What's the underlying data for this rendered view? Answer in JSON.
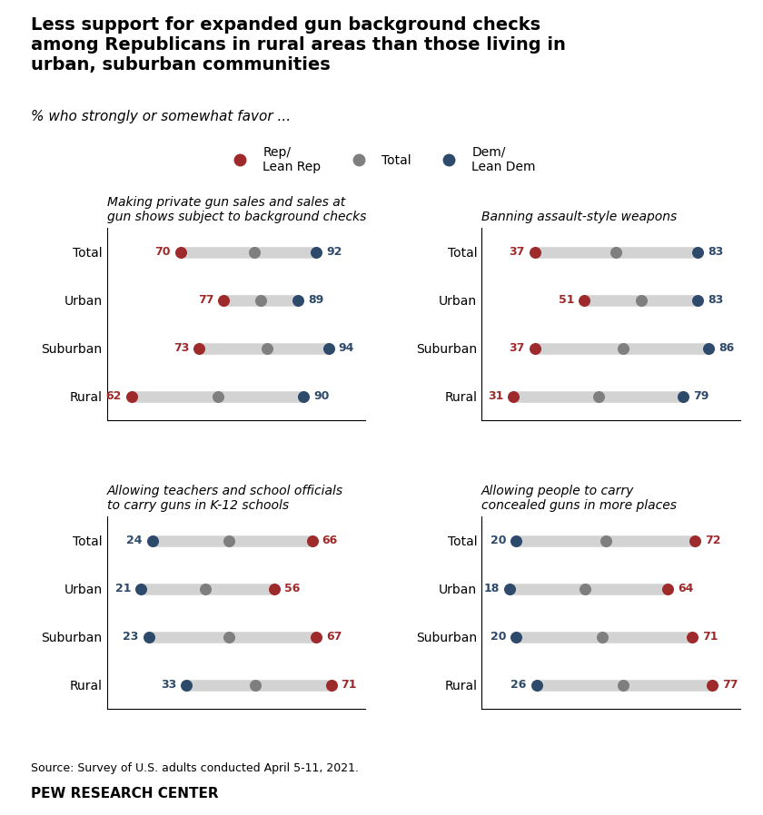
{
  "title": "Less support for expanded gun background checks\namong Republicans in rural areas than those living in\nurban, suburban communities",
  "subtitle": "% who strongly or somewhat favor ...",
  "annotations": [
    "Source: Survey of U.S. adults conducted April 5-11, 2021.",
    "PEW RESEARCH CENTER"
  ],
  "legend": "upper center",
  "chart_data": [
    {
      "type": "dumbbell",
      "title": "Making private gun sales and sales at\ngun shows subject to background checks",
      "categories": [
        "Total",
        "Urban",
        "Suburban",
        "Rural"
      ],
      "xlim": [
        58,
        100
      ],
      "tick_labels": "y",
      "series": [
        {
          "name": "Rep/\nLean Rep",
          "color": "#9e2a2b",
          "values": [
            70,
            77,
            73,
            62
          ],
          "data_labels": true
        },
        {
          "name": "Total",
          "values": [
            82,
            83,
            84,
            76
          ],
          "data_labels": false
        },
        {
          "name": "Dem/\nLean Dem",
          "color": "#2e4a6b",
          "values": [
            92,
            89,
            94,
            90
          ],
          "data_labels": true
        }
      ]
    },
    {
      "type": "dumbbell",
      "title": "Banning assault-style weapons",
      "categories": [
        "Total",
        "Urban",
        "Suburban",
        "Rural"
      ],
      "xlim": [
        22,
        95
      ],
      "tick_labels": "y",
      "series": [
        {
          "name": "Rep/\nLean Rep",
          "color": "#9e2a2b",
          "values": [
            37,
            51,
            37,
            31
          ],
          "data_labels": true
        },
        {
          "name": "Total",
          "values": [
            60,
            67,
            62,
            55
          ],
          "data_labels": false
        },
        {
          "name": "Dem/\nLean Dem",
          "color": "#2e4a6b",
          "values": [
            83,
            83,
            86,
            79
          ],
          "data_labels": true
        }
      ]
    },
    {
      "type": "dumbbell",
      "title": "Allowing teachers and school officials\nto carry guns in K-12 schools",
      "categories": [
        "Total",
        "Urban",
        "Suburban",
        "Rural"
      ],
      "xlim": [
        12,
        80
      ],
      "tick_labels": "y",
      "series": [
        {
          "name": "Dem/\nLean Dem",
          "color": "#2e4a6b",
          "values": [
            24,
            21,
            23,
            33
          ],
          "data_labels": true
        },
        {
          "name": "Total",
          "values": [
            44,
            38,
            44,
            51
          ],
          "data_labels": false
        },
        {
          "name": "Rep/\nLean Rep",
          "color": "#9e2a2b",
          "values": [
            66,
            56,
            67,
            71
          ],
          "data_labels": true
        }
      ]
    },
    {
      "type": "dumbbell",
      "title": "Allowing people to carry\nconcealed guns in more places",
      "categories": [
        "Total",
        "Urban",
        "Suburban",
        "Rural"
      ],
      "xlim": [
        10,
        85
      ],
      "tick_labels": "y",
      "series": [
        {
          "name": "Dem/\nLean Dem",
          "color": "#2e4a6b",
          "values": [
            20,
            18,
            20,
            26
          ],
          "data_labels": true
        },
        {
          "name": "Total",
          "values": [
            46,
            40,
            45,
            51
          ],
          "data_labels": false
        },
        {
          "name": "Rep/\nLean Rep",
          "color": "#9e2a2b",
          "values": [
            72,
            64,
            71,
            77
          ],
          "data_labels": true
        }
      ]
    }
  ]
}
